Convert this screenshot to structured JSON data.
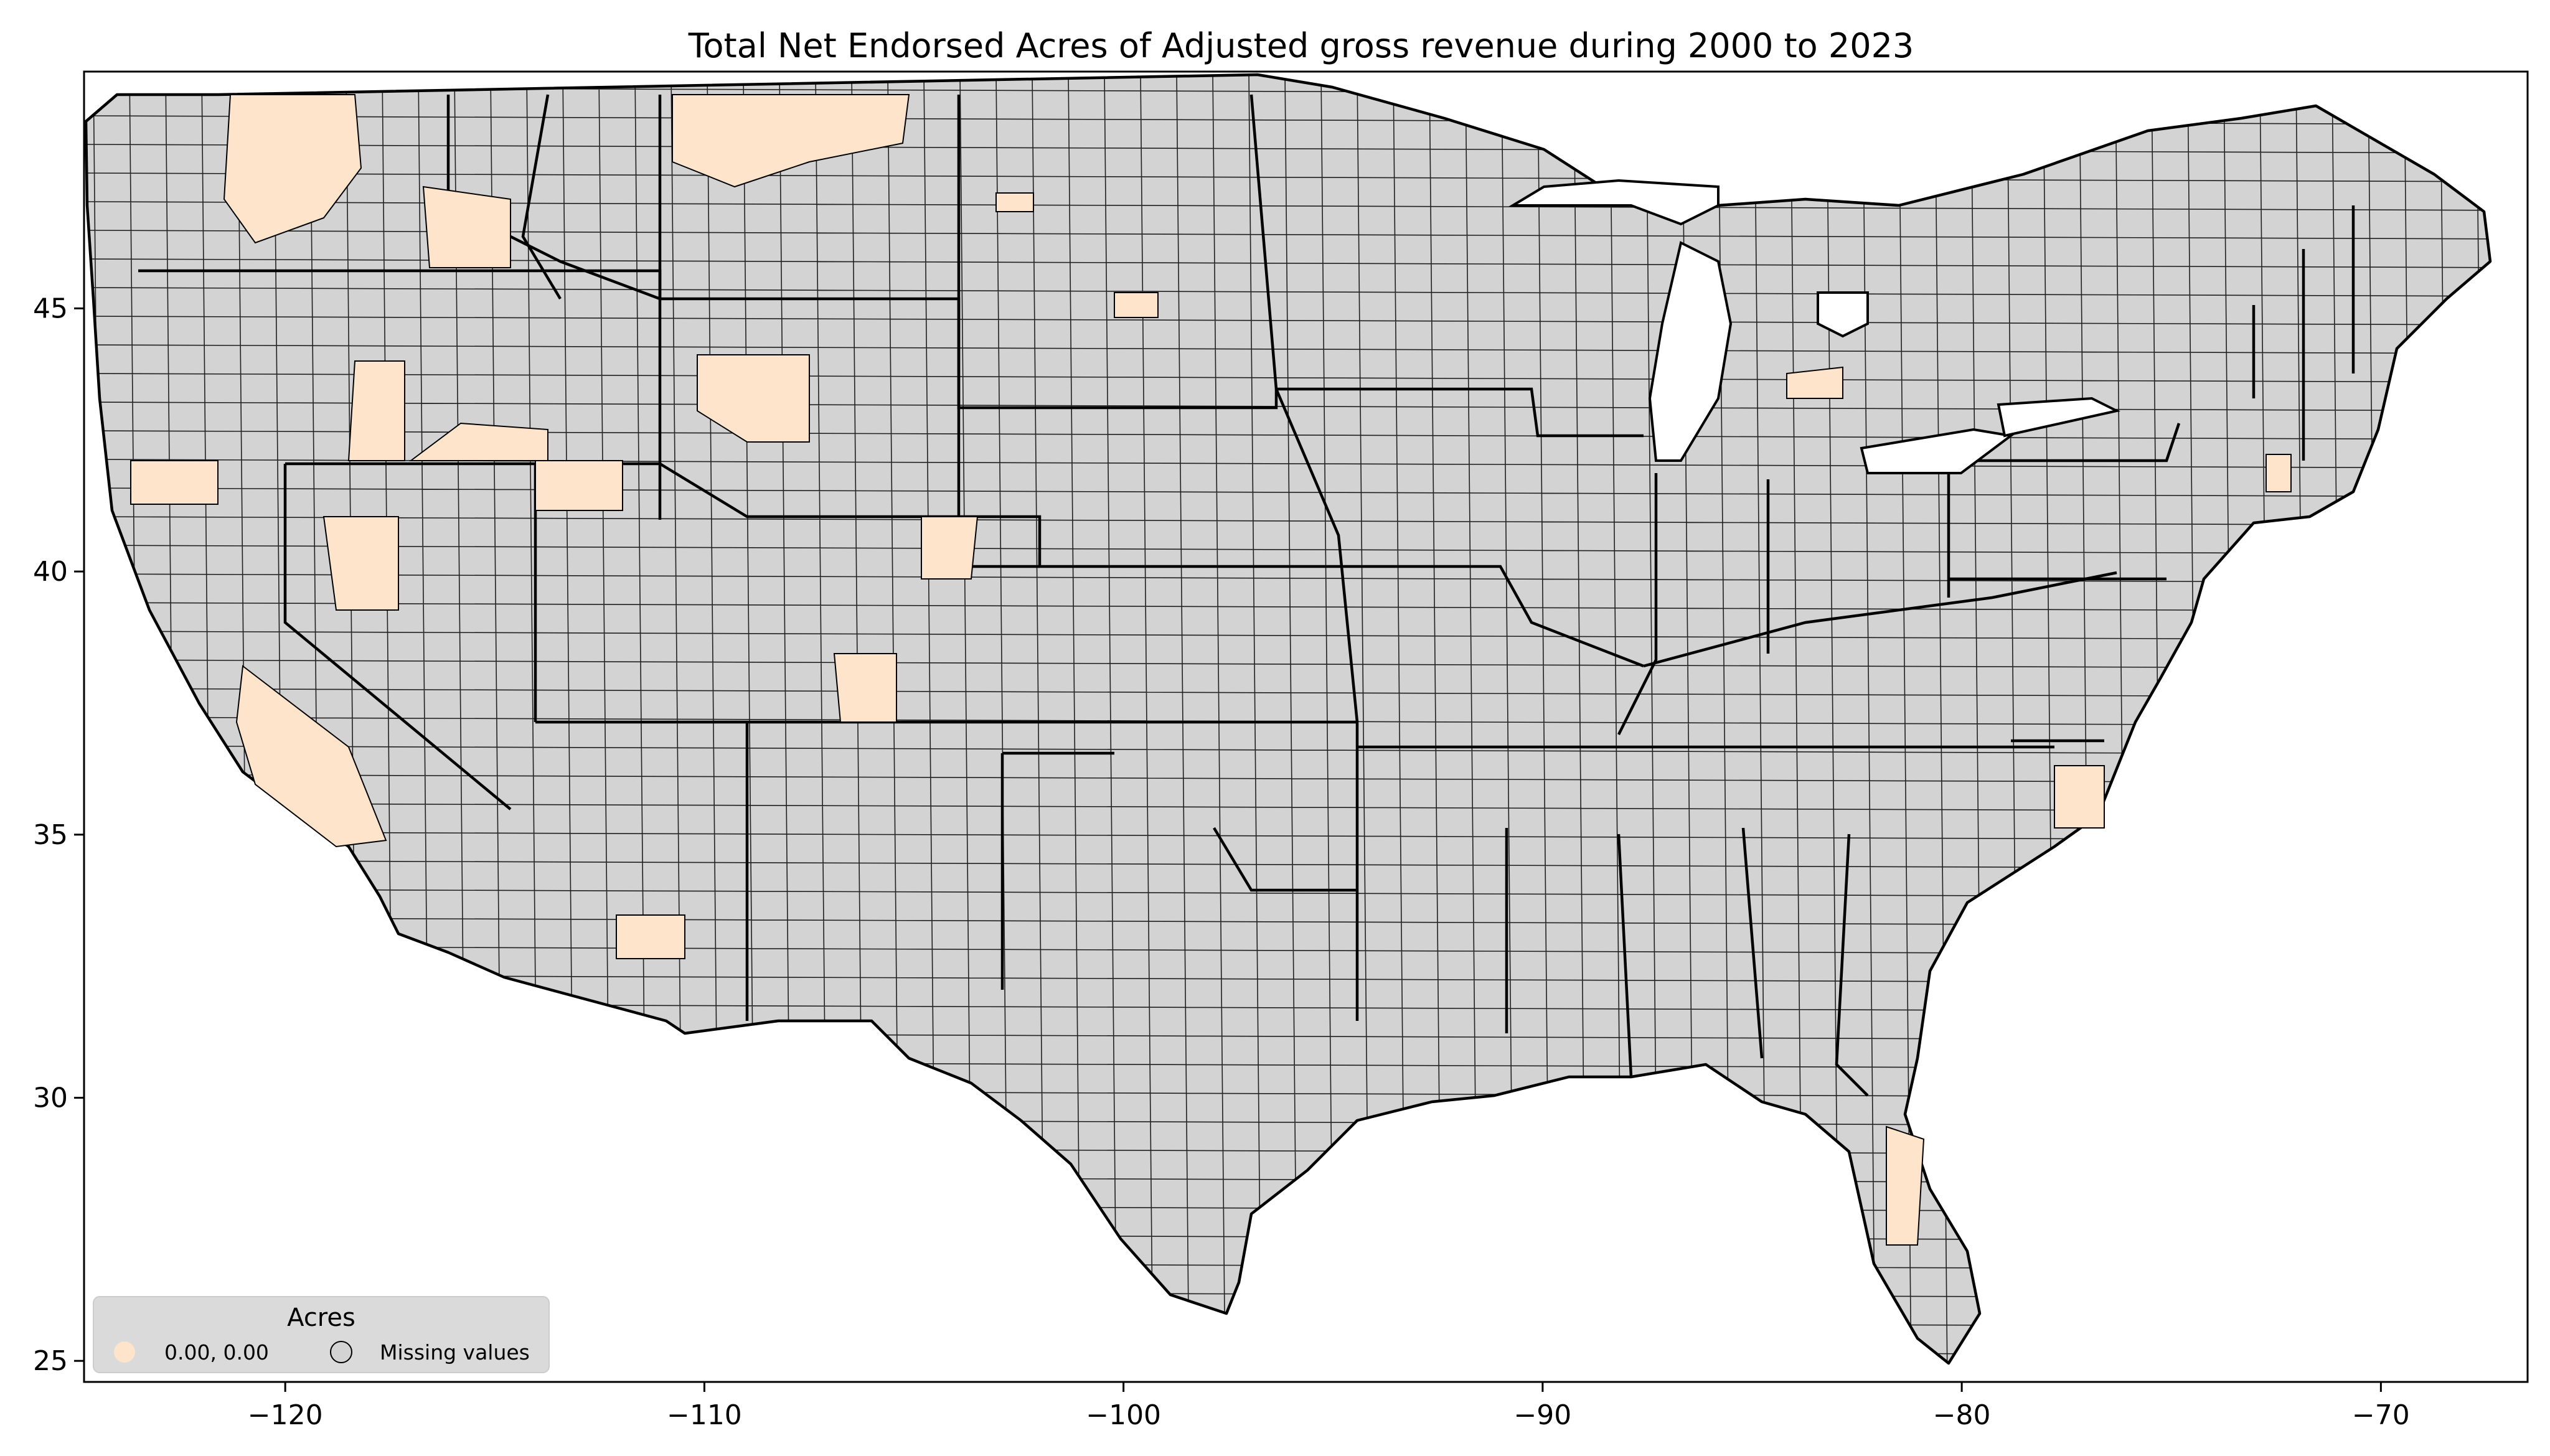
{
  "figure": {
    "title": "Total Net Endorsed Acres of Adjusted gross revenue during 2000 to 2023"
  },
  "axes": {
    "x_ticks": [
      -120,
      -110,
      -100,
      -90,
      -80,
      -70
    ],
    "y_ticks": [
      25,
      30,
      35,
      40,
      45
    ],
    "x_tick_labels": [
      "−120",
      "−110",
      "−100",
      "−90",
      "−80",
      "−70"
    ],
    "y_tick_labels": [
      "25",
      "30",
      "35",
      "40",
      "45"
    ],
    "xlim": [
      -124.8,
      -66.5
    ],
    "ylim": [
      24.6,
      49.5
    ]
  },
  "legend": {
    "title": "Acres",
    "items": [
      {
        "label": "0.00, 0.00",
        "color": "#ffe4cc"
      },
      {
        "label": "Missing values",
        "color": "#d3d3d3"
      }
    ],
    "placement": "lower-left"
  },
  "colors": {
    "missing": "#d3d3d3",
    "value": "#ffe4cc",
    "outline": "#000000"
  },
  "chart_data": {
    "type": "choropleth",
    "title": "Total Net Endorsed Acres of Adjusted gross revenue during 2000 to 2023",
    "legend_title": "Acres",
    "classes": [
      "0.00, 0.00",
      "Missing values"
    ],
    "xlim": [
      -124.8,
      -66.5
    ],
    "ylim": [
      24.6,
      49.5
    ]
  }
}
